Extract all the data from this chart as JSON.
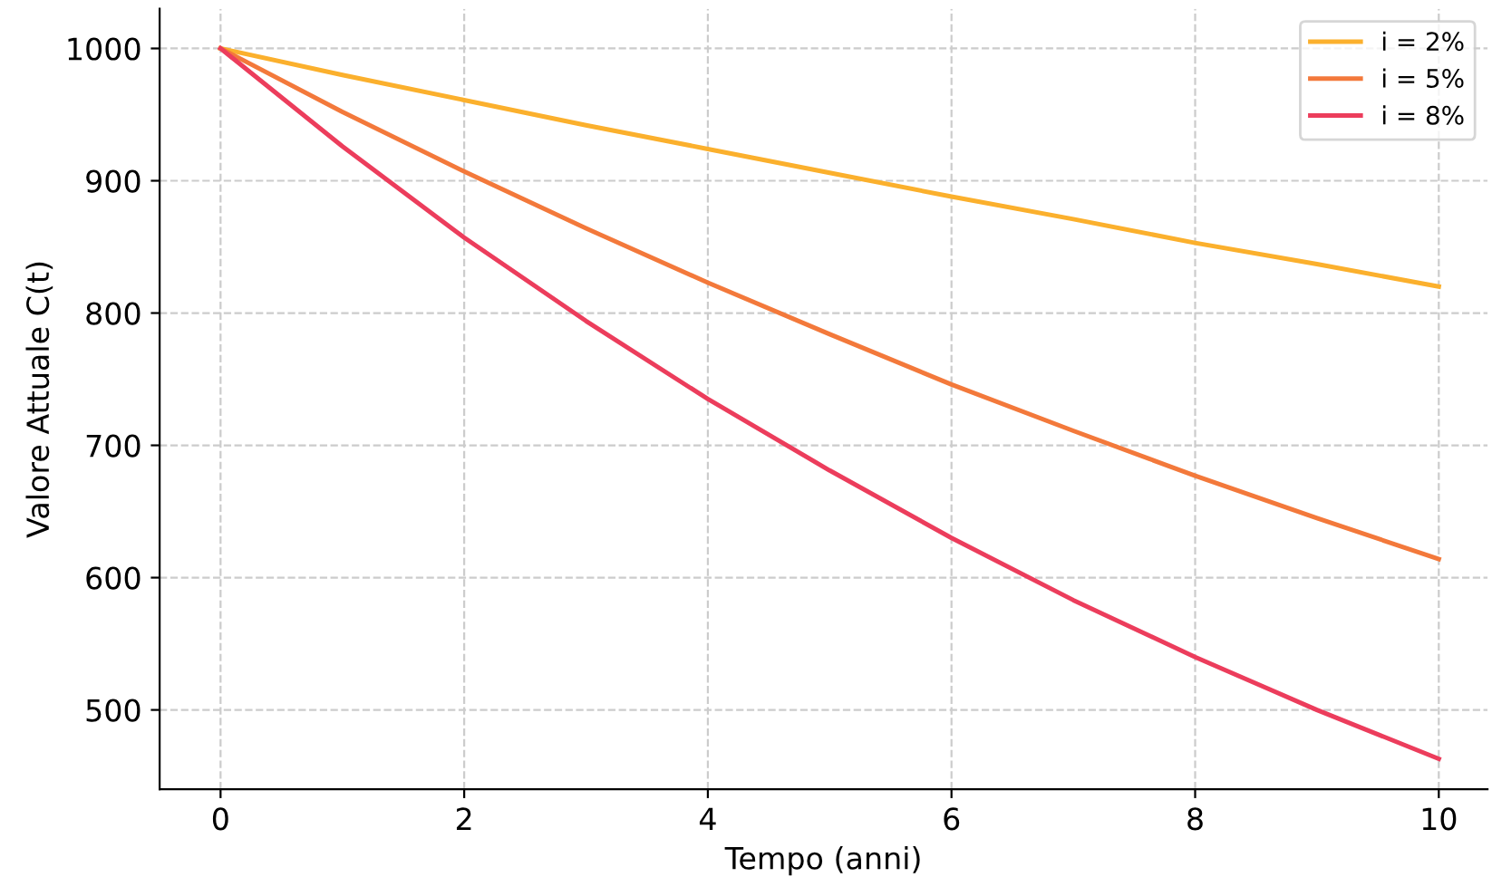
{
  "chart_data": {
    "type": "line",
    "xlabel": "Tempo (anni)",
    "ylabel": "Valore Attuale C(t)",
    "x": [
      0,
      1,
      2,
      3,
      4,
      5,
      6,
      7,
      8,
      9,
      10
    ],
    "series": [
      {
        "name": "i = 2%",
        "color": "#fbb02d",
        "values": [
          1000,
          980,
          961,
          942,
          924,
          906,
          888,
          871,
          853,
          837,
          820
        ]
      },
      {
        "name": "i = 5%",
        "color": "#f3793b",
        "values": [
          1000,
          952,
          907,
          864,
          823,
          784,
          746,
          711,
          677,
          645,
          614
        ]
      },
      {
        "name": "i = 8%",
        "color": "#ec3d5c",
        "values": [
          1000,
          926,
          857,
          794,
          735,
          681,
          630,
          583,
          540,
          500,
          463
        ]
      }
    ],
    "xlim": [
      -0.5,
      10.4
    ],
    "ylim": [
      440,
      1030
    ],
    "xticks": [
      0,
      2,
      4,
      6,
      8,
      10
    ],
    "yticks": [
      500,
      600,
      700,
      800,
      900,
      1000
    ],
    "grid": true,
    "legend": "top right",
    "line_style": "solid",
    "marker": "none"
  }
}
